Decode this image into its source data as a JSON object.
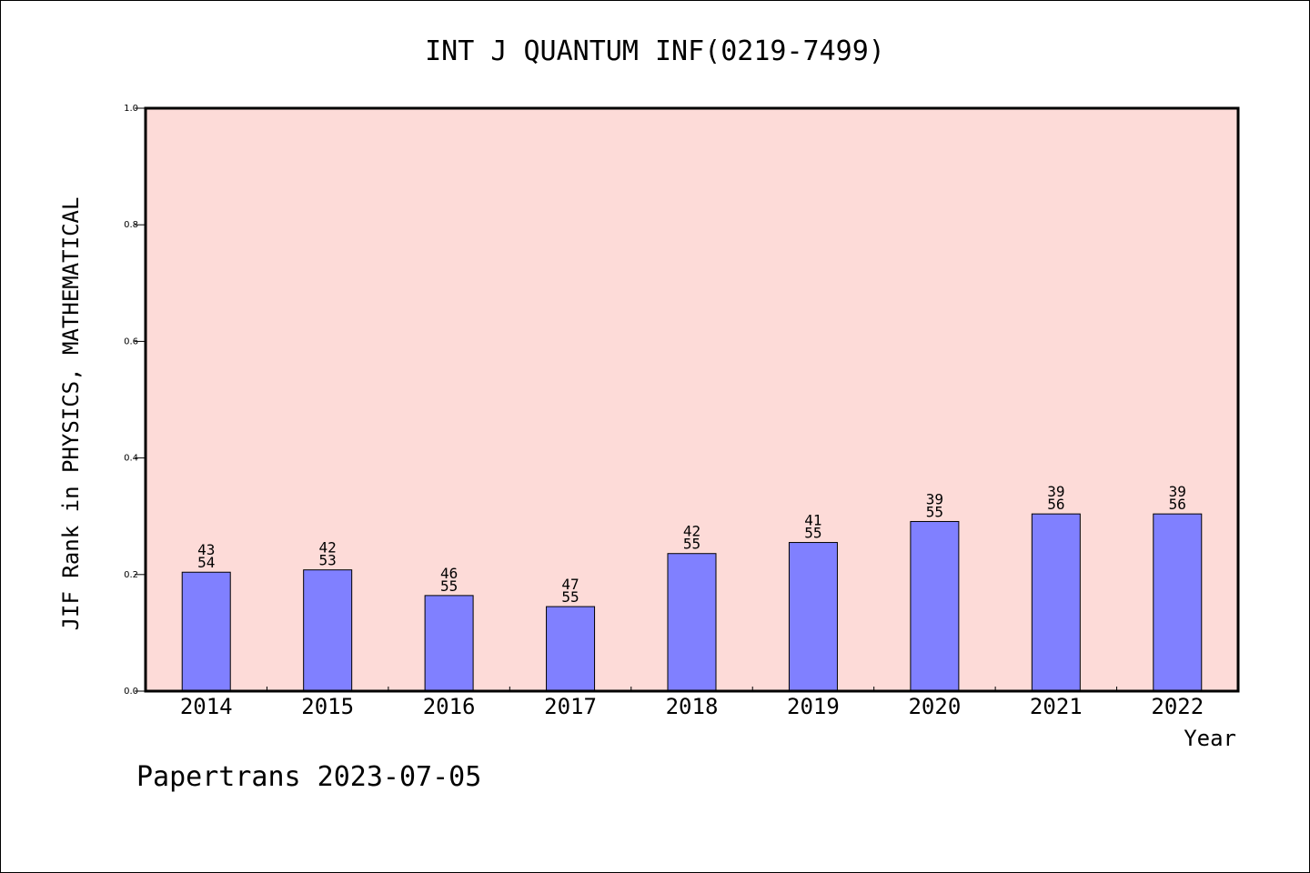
{
  "chart_data": {
    "type": "bar",
    "title": "INT J QUANTUM INF(0219-7499)",
    "ylabel": "JIF Rank in PHYSICS, MATHEMATICAL",
    "xlabel": "Year",
    "ylim": [
      0.0,
      1.0
    ],
    "yticks": [
      "0.0",
      "0.2",
      "0.4",
      "0.6",
      "0.8",
      "1.0"
    ],
    "categories": [
      "2014",
      "2015",
      "2016",
      "2017",
      "2018",
      "2019",
      "2020",
      "2021",
      "2022"
    ],
    "values": [
      0.204,
      0.208,
      0.164,
      0.145,
      0.236,
      0.255,
      0.291,
      0.304,
      0.304
    ],
    "rank": [
      "43",
      "42",
      "46",
      "47",
      "42",
      "41",
      "39",
      "39",
      "39"
    ],
    "total": [
      "54",
      "53",
      "55",
      "55",
      "55",
      "55",
      "55",
      "56",
      "56"
    ],
    "colors": {
      "plot_background": "#fddbd8",
      "bar_fill": "#8080ff",
      "bar_stroke": "#000000"
    },
    "grid": false
  },
  "footer": "Papertrans 2023-07-05"
}
